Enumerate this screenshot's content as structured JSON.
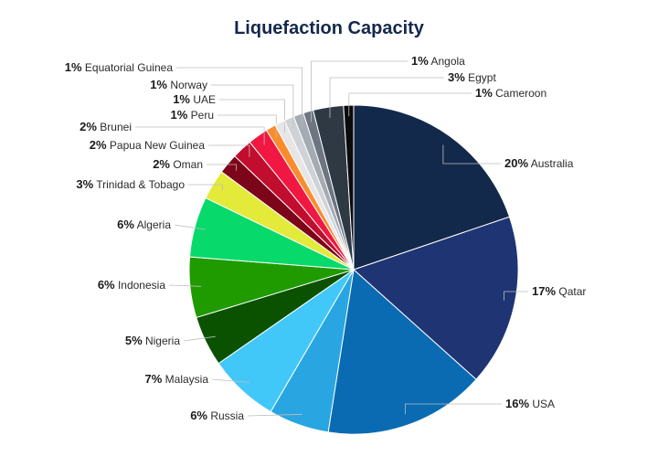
{
  "chart_data": {
    "type": "pie",
    "title": "Liquefaction Capacity",
    "slices": [
      {
        "label": "Australia",
        "percent_label": "20%",
        "value": 20,
        "color": "#13294b"
      },
      {
        "label": "Qatar",
        "percent_label": "17%",
        "value": 17,
        "color": "#1f3473"
      },
      {
        "label": "USA",
        "percent_label": "16%",
        "value": 16,
        "color": "#0a6bb2"
      },
      {
        "label": "Russia",
        "percent_label": "6%",
        "value": 6,
        "color": "#29a6e2"
      },
      {
        "label": "Malaysia",
        "percent_label": "7%",
        "value": 7,
        "color": "#42c8f8"
      },
      {
        "label": "Nigeria",
        "percent_label": "5%",
        "value": 5,
        "color": "#0b5200"
      },
      {
        "label": "Indonesia",
        "percent_label": "6%",
        "value": 6,
        "color": "#1f9b00"
      },
      {
        "label": "Algeria",
        "percent_label": "6%",
        "value": 6,
        "color": "#08d96b"
      },
      {
        "label": "Trinidad & Tobago",
        "percent_label": "3%",
        "value": 3,
        "color": "#e3ea3a"
      },
      {
        "label": "Oman",
        "percent_label": "2%",
        "value": 2,
        "color": "#7d0519"
      },
      {
        "label": "Papua New Guinea",
        "percent_label": "2%",
        "value": 2,
        "color": "#c10d2e"
      },
      {
        "label": "Brunei",
        "percent_label": "2%",
        "value": 2,
        "color": "#f01842"
      },
      {
        "label": "Peru",
        "percent_label": "1%",
        "value": 1,
        "color": "#fb8c2e"
      },
      {
        "label": "UAE",
        "percent_label": "1%",
        "value": 1,
        "color": "#e6e6e6"
      },
      {
        "label": "Norway",
        "percent_label": "1%",
        "value": 1,
        "color": "#cfd3d8"
      },
      {
        "label": "Equatorial Guinea",
        "percent_label": "1%",
        "value": 1,
        "color": "#a4abb3"
      },
      {
        "label": "Angola",
        "percent_label": "1%",
        "value": 1,
        "color": "#6c7580"
      },
      {
        "label": "Egypt",
        "percent_label": "3%",
        "value": 3,
        "color": "#2e3944"
      },
      {
        "label": "Cameroon",
        "percent_label": "1%",
        "value": 1,
        "color": "#0b0b0b"
      }
    ]
  }
}
